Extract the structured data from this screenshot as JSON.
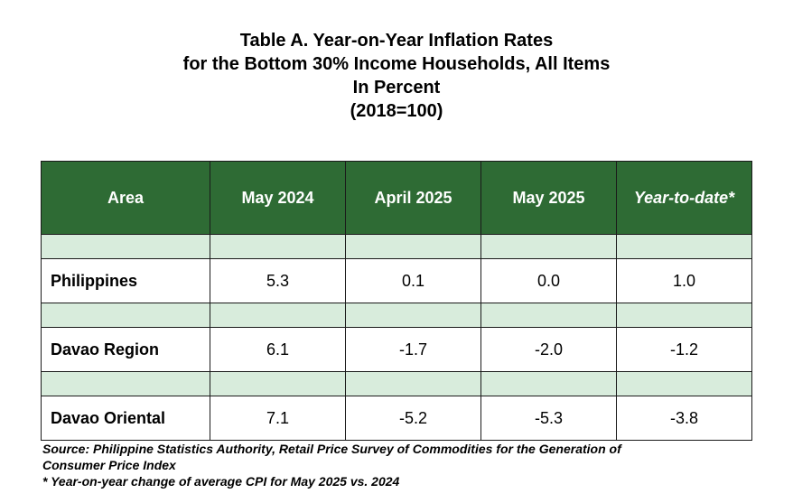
{
  "title": {
    "line1": "Table A. Year-on-Year Inflation Rates",
    "line2": "for the Bottom 30% Income Households, All Items",
    "line3": "In Percent",
    "line4": "(2018=100)"
  },
  "table": {
    "headers": [
      "Area",
      "May 2024",
      "April 2025",
      "May 2025",
      "Year-to-date*"
    ],
    "rows": [
      {
        "area": "Philippines",
        "values": [
          "5.3",
          "0.1",
          "0.0",
          "1.0"
        ]
      },
      {
        "area": "Davao Region",
        "values": [
          "6.1",
          "-1.7",
          "-2.0",
          "-1.2"
        ]
      },
      {
        "area": "Davao Oriental",
        "values": [
          "7.1",
          "-5.2",
          "-5.3",
          "-3.8"
        ]
      }
    ]
  },
  "notes": {
    "source_line1": "Source: Philippine Statistics Authority, Retail Price Survey of Commodities for the Generation of",
    "source_line2": "Consumer Price Index",
    "footnote": "* Year-on-year change of average CPI for May 2025 vs. 2024"
  },
  "colors": {
    "header_bg": "#2e6b34",
    "spacer_bg": "#d8ecdc"
  }
}
